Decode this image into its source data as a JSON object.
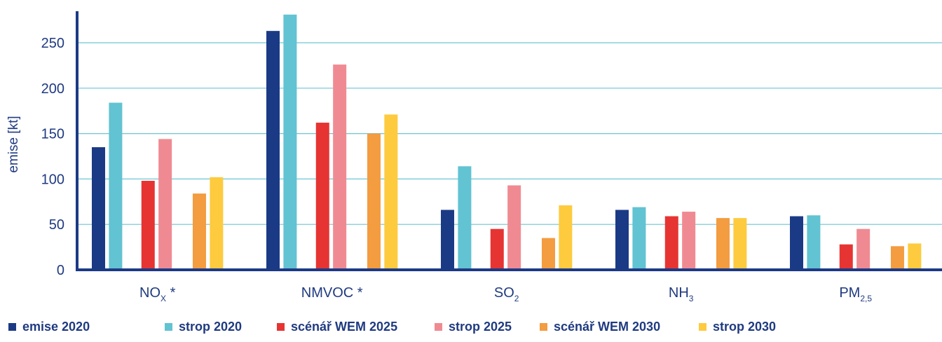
{
  "chart_data": {
    "type": "bar",
    "ylabel": "emise [kt]",
    "ylim": [
      0,
      280
    ],
    "yticks": [
      0,
      50,
      100,
      150,
      200,
      250
    ],
    "grid": true,
    "legend_position": "bottom",
    "categories": [
      {
        "main": "NO",
        "sub": "X",
        "suffix": " *"
      },
      {
        "main": "NMVOC",
        "sub": "",
        "suffix": " *"
      },
      {
        "main": "SO",
        "sub": "2",
        "suffix": ""
      },
      {
        "main": "NH",
        "sub": "3",
        "suffix": ""
      },
      {
        "main": "PM",
        "sub": "2,5",
        "suffix": ""
      }
    ],
    "series": [
      {
        "name": "emise 2020",
        "color": "#1b3a86",
        "values": [
          135,
          263,
          66,
          66,
          59
        ]
      },
      {
        "name": "strop 2020",
        "color": "#62c3d2",
        "values": [
          184,
          281,
          114,
          69,
          60
        ]
      },
      {
        "name": "scénář WEM 2025",
        "color": "#e63433",
        "values": [
          98,
          162,
          45,
          59,
          28
        ]
      },
      {
        "name": "strop 2025",
        "color": "#f08a92",
        "values": [
          144,
          226,
          93,
          64,
          45
        ]
      },
      {
        "name": "scénář WEM 2030",
        "color": "#f39c40",
        "values": [
          84,
          150,
          35,
          57,
          26
        ]
      },
      {
        "name": "strop 2030",
        "color": "#fecb3f",
        "values": [
          102,
          171,
          71,
          57,
          29
        ]
      }
    ],
    "colors": {
      "axis": "#1b3a86",
      "grid": "#6ec6d3",
      "text": "#1f3a80"
    }
  }
}
